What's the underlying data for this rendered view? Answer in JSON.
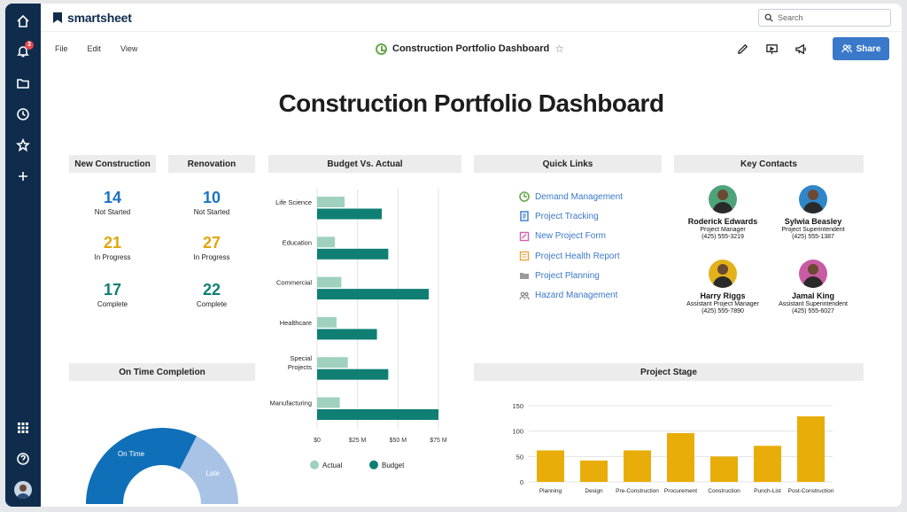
{
  "app": {
    "brand": "smartsheet",
    "search_placeholder": "Search",
    "notification_count": "3",
    "menus": [
      "File",
      "Edit",
      "View"
    ],
    "sheet_title": "Construction Portfolio Dashboard",
    "share_label": "Share"
  },
  "dashboard": {
    "title": "Construction Portfolio Dashboard",
    "new_construction": {
      "header": "New Construction",
      "metrics": [
        {
          "value": "14",
          "label": "Not Started"
        },
        {
          "value": "21",
          "label": "In Progress"
        },
        {
          "value": "17",
          "label": "Complete"
        }
      ]
    },
    "renovation": {
      "header": "Renovation",
      "metrics": [
        {
          "value": "10",
          "label": "Not Started"
        },
        {
          "value": "27",
          "label": "In Progress"
        },
        {
          "value": "22",
          "label": "Complete"
        }
      ]
    },
    "budget_header": "Budget Vs. Actual",
    "quick_links_header": "Quick Links",
    "quick_links": [
      {
        "label": "Demand Management",
        "icon": "dashboard-icon"
      },
      {
        "label": "Project Tracking",
        "icon": "document-icon"
      },
      {
        "label": "New Project Form",
        "icon": "form-icon"
      },
      {
        "label": "Project Health Report",
        "icon": "report-icon"
      },
      {
        "label": "Project Planning",
        "icon": "folder-icon"
      },
      {
        "label": "Hazard Management",
        "icon": "people-icon"
      }
    ],
    "key_contacts_header": "Key Contacts",
    "contacts": [
      {
        "name": "Roderick Edwards",
        "role": "Project Manager",
        "phone": "(425) 555-3219",
        "color": "#4fa37a"
      },
      {
        "name": "Sylwia Beasley",
        "role": "Project Superintendent",
        "phone": "(425) 555-1387",
        "color": "#2f86c9"
      },
      {
        "name": "Harry Riggs",
        "role": "Assistant Project Manager",
        "phone": "(425) 555-7890",
        "color": "#e3b21b"
      },
      {
        "name": "Jamal King",
        "role": "Assistant Superintendent",
        "phone": "(425) 555-6027",
        "color": "#c95ba3"
      }
    ],
    "on_time_header": "On Time Completion",
    "project_stage_header": "Project Stage"
  },
  "chart_data": [
    {
      "type": "bar",
      "orientation": "horizontal",
      "categories": [
        "Life Science",
        "Education",
        "Commercial",
        "Healthcare",
        "Special Projects",
        "Manufacturing"
      ],
      "series": [
        {
          "name": "Actual",
          "values": [
            17,
            11,
            15,
            12,
            19,
            14
          ],
          "color": "#9fd1be"
        },
        {
          "name": "Budget",
          "values": [
            40,
            44,
            69,
            37,
            44,
            75
          ],
          "color": "#0f7f74"
        }
      ],
      "xticks": [
        "$0",
        "$25 M",
        "$50 M",
        "$75 M"
      ],
      "xlim": [
        0,
        75
      ],
      "legend": "bottom"
    },
    {
      "type": "pie",
      "style": "half-donut",
      "categories": [
        "On Time",
        "Late"
      ],
      "values": [
        65,
        35
      ],
      "colors": [
        "#0f6fb8",
        "#a8c3e6"
      ]
    },
    {
      "type": "bar",
      "categories": [
        "Planning",
        "Design",
        "Pre-Construction",
        "Procurement",
        "Construction",
        "Punch-List",
        "Post-Construction"
      ],
      "values": [
        62,
        42,
        62,
        96,
        50,
        71,
        129
      ],
      "yticks": [
        "0",
        "50",
        "100",
        "150"
      ],
      "ylim": [
        0,
        150
      ],
      "grid": true,
      "color": "#e8ad08"
    }
  ]
}
